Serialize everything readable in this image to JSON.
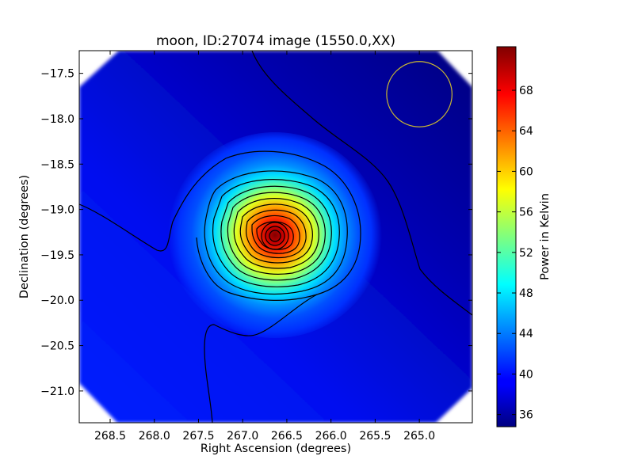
{
  "chart_data": {
    "type": "heatmap",
    "title": "moon, ID:27074 image (1550.0,XX)",
    "xlabel": "Right Ascension (degrees)",
    "ylabel": "Declination (degrees)",
    "xlim": [
      268.85,
      264.4
    ],
    "ylim": [
      -21.35,
      -17.25
    ],
    "x_inverted": true,
    "xticks": [
      {
        "value": 268.5,
        "label": "268.5"
      },
      {
        "value": 268.0,
        "label": "268.0"
      },
      {
        "value": 267.5,
        "label": "267.5"
      },
      {
        "value": 267.0,
        "label": "267.0"
      },
      {
        "value": 266.5,
        "label": "266.5"
      },
      {
        "value": 266.0,
        "label": "266.0"
      },
      {
        "value": 265.5,
        "label": "265.5"
      },
      {
        "value": 265.0,
        "label": "265.0"
      }
    ],
    "yticks": [
      {
        "value": -17.5,
        "label": "−17.5"
      },
      {
        "value": -18.0,
        "label": "−18.0"
      },
      {
        "value": -18.5,
        "label": "−18.5"
      },
      {
        "value": -19.0,
        "label": "−19.0"
      },
      {
        "value": -19.5,
        "label": "−19.5"
      },
      {
        "value": -20.0,
        "label": "−20.0"
      },
      {
        "value": -20.5,
        "label": "−20.5"
      },
      {
        "value": -21.0,
        "label": "−21.0"
      }
    ],
    "source_center": {
      "ra": 266.7,
      "dec": -19.3
    },
    "peak_value": 72,
    "background_value": 40,
    "marker_circle": {
      "ra": 265.0,
      "dec": -17.73,
      "radius_deg": 0.37,
      "color": "#c8b632"
    },
    "colorbar": {
      "label": "Power in Kelvin",
      "min": 34.8,
      "max": 72.3,
      "ticks": [
        {
          "value": 36,
          "label": "36"
        },
        {
          "value": 40,
          "label": "40"
        },
        {
          "value": 44,
          "label": "44"
        },
        {
          "value": 48,
          "label": "48"
        },
        {
          "value": 52,
          "label": "52"
        },
        {
          "value": 56,
          "label": "56"
        },
        {
          "value": 60,
          "label": "60"
        },
        {
          "value": 64,
          "label": "64"
        },
        {
          "value": 68,
          "label": "68"
        }
      ],
      "colormap": "jet"
    },
    "grid": false
  }
}
